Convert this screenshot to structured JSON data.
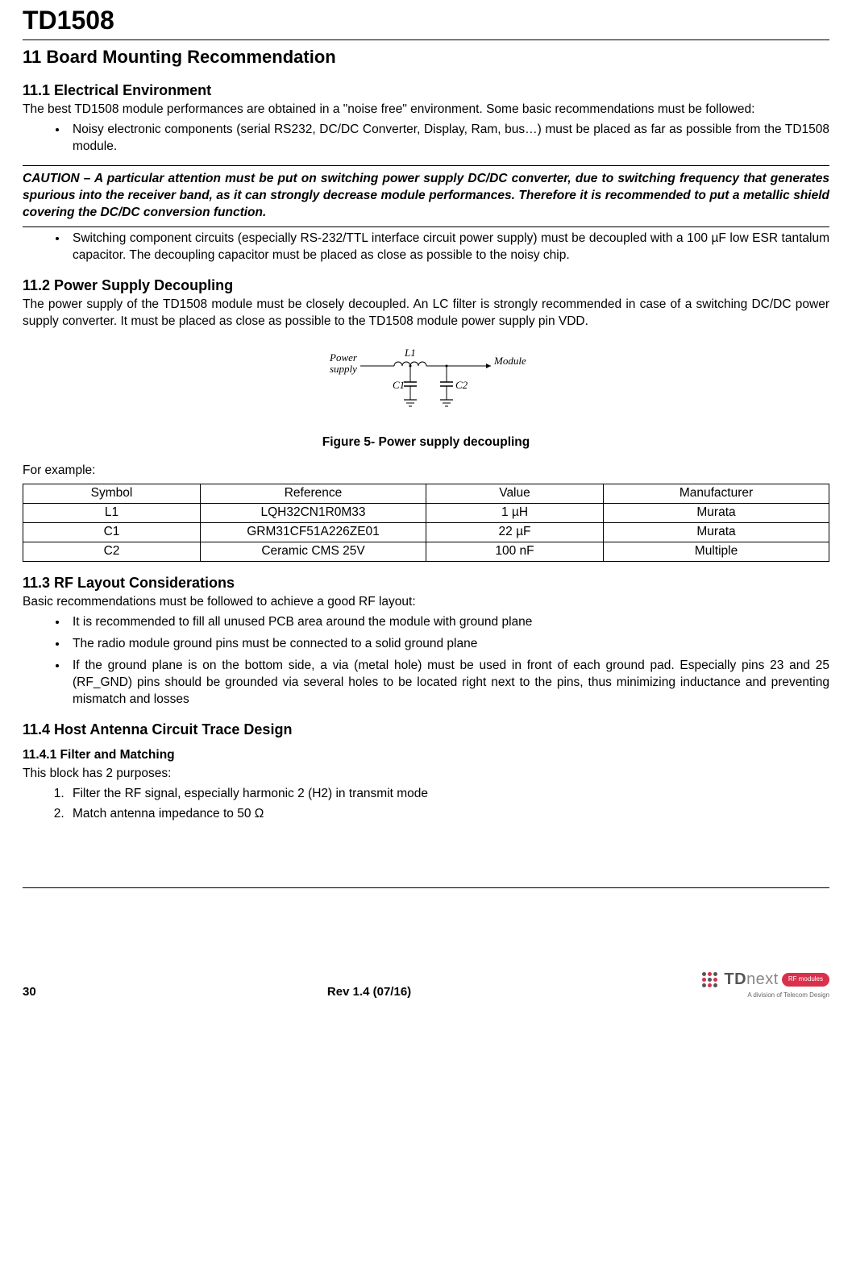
{
  "doc_title": "TD1508",
  "section": {
    "num": "11",
    "title": "Board Mounting Recommendation"
  },
  "s11_1": {
    "heading": "11.1 Electrical Environment",
    "intro": "The best TD1508 module performances are obtained in a \"noise free\" environment. Some basic recommendations must be followed:",
    "bullet1": "Noisy electronic components (serial RS232, DC/DC Converter, Display, Ram, bus…) must be placed as far as possible from the TD1508 module.",
    "caution": "CAUTION – A particular attention must be put on switching power supply DC/DC converter, due to switching frequency that generates spurious into the receiver band, as it can strongly decrease module performances. Therefore it is recommended to put a metallic shield covering the DC/DC conversion function.",
    "bullet2": "Switching component circuits (especially RS-232/TTL interface circuit power supply) must be decoupled with a 100 µF low ESR tantalum capacitor. The decoupling capacitor must be placed as close as possible to the noisy chip."
  },
  "s11_2": {
    "heading": "11.2 Power Supply Decoupling",
    "body": "The power supply of the TD1508 module must be closely decoupled. An LC filter is strongly recommended in case of a switching DC/DC power supply converter. It must be placed as close as possible to the TD1508 module power supply pin VDD.",
    "fig_caption": "Figure 5- Power supply decoupling",
    "fig_labels": {
      "power": "Power",
      "supply": "supply",
      "L1": "L1",
      "C1": "C1",
      "C2": "C2",
      "module": "Module"
    },
    "example_label": "For example:",
    "table": {
      "headers": [
        "Symbol",
        "Reference",
        "Value",
        "Manufacturer"
      ],
      "rows": [
        [
          "L1",
          "LQH32CN1R0M33",
          "1 µH",
          "Murata"
        ],
        [
          "C1",
          "GRM31CF51A226ZE01",
          "22 µF",
          "Murata"
        ],
        [
          "C2",
          "Ceramic CMS 25V",
          "100 nF",
          "Multiple"
        ]
      ],
      "col_widths": [
        "22%",
        "28%",
        "22%",
        "28%"
      ]
    }
  },
  "s11_3": {
    "heading": "11.3 RF Layout Considerations",
    "intro": "Basic recommendations must be followed to achieve a good RF layout:",
    "bullets": [
      "It is recommended to fill all unused PCB area around the module with ground plane",
      "The radio module ground pins must be connected to a solid ground plane",
      "If the ground plane is on the bottom side, a via (metal hole) must be used in front of each ground pad. Especially pins 23 and 25 (RF_GND) pins should be grounded via several holes to be located right next to the pins, thus minimizing inductance and preventing mismatch and losses"
    ]
  },
  "s11_4": {
    "heading": "11.4 Host Antenna Circuit Trace Design",
    "s11_4_1": {
      "heading": "11.4.1   Filter and Matching",
      "intro": "This block has 2 purposes:",
      "items": [
        "Filter the RF signal, especially harmonic 2 (H2) in transmit mode",
        "Match antenna impedance to 50 Ω"
      ]
    }
  },
  "footer": {
    "page": "30",
    "rev": "Rev 1.4 (07/16)",
    "logo_text_a": "TD",
    "logo_text_b": "next",
    "logo_badge": "RF modules",
    "logo_sub": "A division of Telecom Design"
  }
}
